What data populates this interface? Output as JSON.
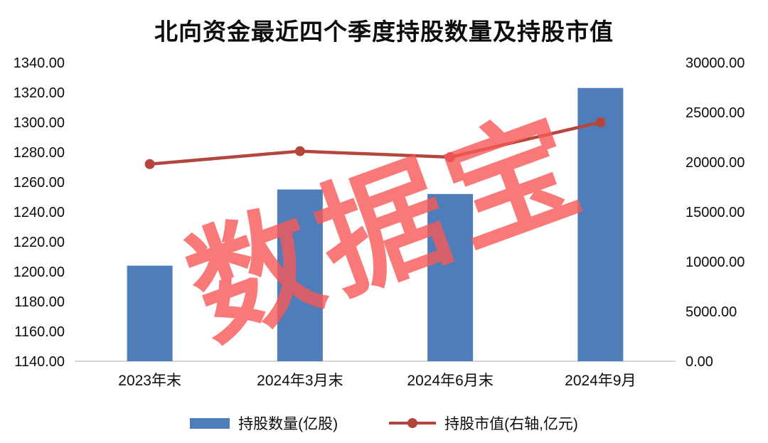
{
  "watermark": "数据宝",
  "colors": {
    "background": "#FFFFFF",
    "text": "#0D0D0D",
    "axis_line": "#C9C9C9",
    "bar": "#4E7DBA",
    "line": "#B4463E",
    "watermark": "#F75858"
  },
  "chart_data": {
    "type": "combo",
    "title": "北向资金最近四个季度持股数量及持股市值",
    "categories": [
      "2023年末",
      "2024年3月末",
      "2024年6月末",
      "2024年9月"
    ],
    "series": [
      {
        "name": "持股数量(亿股)",
        "type": "bar",
        "axis": "left",
        "color": "#4E7DBA",
        "values": [
          1204,
          1255,
          1252,
          1323
        ]
      },
      {
        "name": "持股市值(右轴,亿元)",
        "type": "line",
        "axis": "right",
        "color": "#B4463E",
        "values": [
          19800,
          21100,
          20500,
          24000
        ]
      }
    ],
    "left_axis": {
      "min": 1140,
      "max": 1340,
      "step": 20,
      "labels": [
        "1340.00",
        "1320.00",
        "1300.00",
        "1280.00",
        "1260.00",
        "1240.00",
        "1220.00",
        "1200.00",
        "1180.00",
        "1160.00",
        "1140.00"
      ]
    },
    "right_axis": {
      "min": 0,
      "max": 30000,
      "step": 5000,
      "labels": [
        "30000.00",
        "25000.00",
        "20000.00",
        "15000.00",
        "10000.00",
        "5000.00",
        "0.00"
      ]
    },
    "grid": false,
    "legend_position": "bottom"
  }
}
